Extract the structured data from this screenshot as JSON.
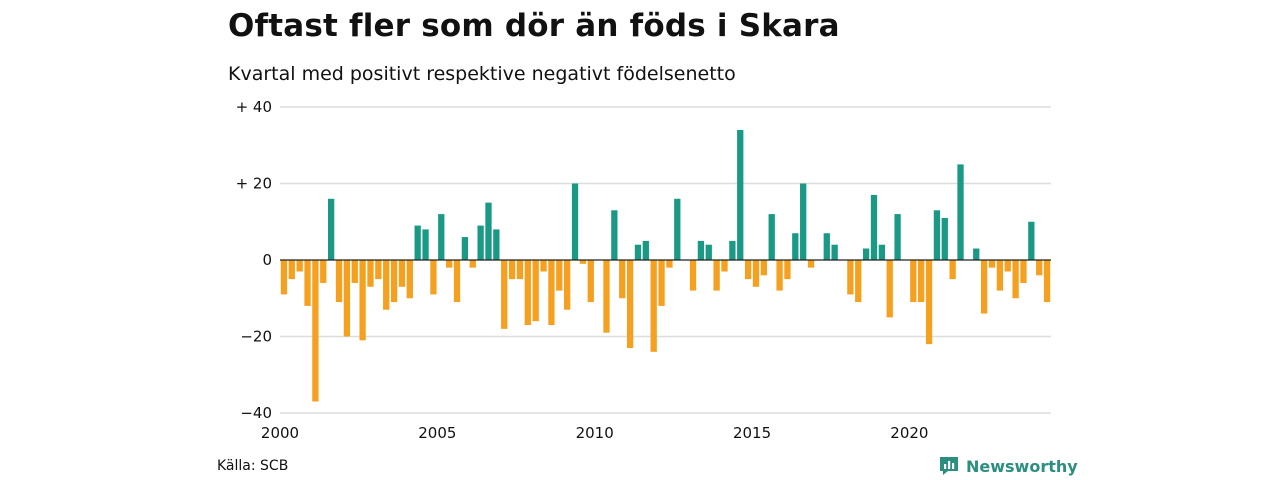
{
  "title": "Oftast fler som dör än föds i Skara",
  "subtitle": "Kvartal med positivt respektive negativt födelsenetto",
  "source": "Källa: SCB",
  "brand": {
    "name": "Newsworthy",
    "icon": "newsworthy-logo-icon",
    "color": "#2a8f80"
  },
  "colors": {
    "positive": "#1a9985",
    "negative": "#f5a01e",
    "grid": "#dddddd",
    "zero_line": "#222222"
  },
  "chart_data": {
    "type": "bar",
    "title": "Oftast fler som dör än föds i Skara",
    "subtitle": "Kvartal med positivt respektive negativt födelsenetto",
    "xlabel": "",
    "ylabel": "",
    "xlim": [
      2000.0,
      2024.5
    ],
    "ylim": [
      -40,
      40
    ],
    "x_ticks": [
      2000,
      2005,
      2010,
      2015,
      2020
    ],
    "y_ticks": [
      {
        "value": 40,
        "label": "+ 40"
      },
      {
        "value": 20,
        "label": "+ 20"
      },
      {
        "value": 0,
        "label": "0"
      },
      {
        "value": -20,
        "label": "−20"
      },
      {
        "value": -40,
        "label": "−40"
      }
    ],
    "grid": true,
    "legend": "none",
    "quarter_start": [
      2000,
      1
    ],
    "values": [
      -9,
      -5,
      -3,
      -12,
      -37,
      -6,
      16,
      -11,
      -20,
      -6,
      -21,
      -7,
      -5,
      -13,
      -11,
      -7,
      -10,
      9,
      8,
      -9,
      12,
      -2,
      -11,
      6,
      -2,
      9,
      15,
      8,
      -18,
      -5,
      -5,
      -17,
      -16,
      -3,
      -17,
      -8,
      -13,
      20,
      -1,
      -11,
      0,
      -19,
      13,
      -10,
      -23,
      4,
      5,
      -24,
      -12,
      -2,
      16,
      0,
      -8,
      5,
      4,
      -8,
      -3,
      5,
      34,
      -5,
      -7,
      -4,
      12,
      -8,
      -5,
      7,
      20,
      -2,
      0,
      7,
      4,
      0,
      -9,
      -11,
      3,
      17,
      4,
      -15,
      12,
      0,
      -11,
      -11,
      -22,
      13,
      11,
      -5,
      25,
      0,
      3,
      -14,
      -2,
      -8,
      -3,
      -10,
      -6,
      10,
      -4,
      -11
    ]
  }
}
